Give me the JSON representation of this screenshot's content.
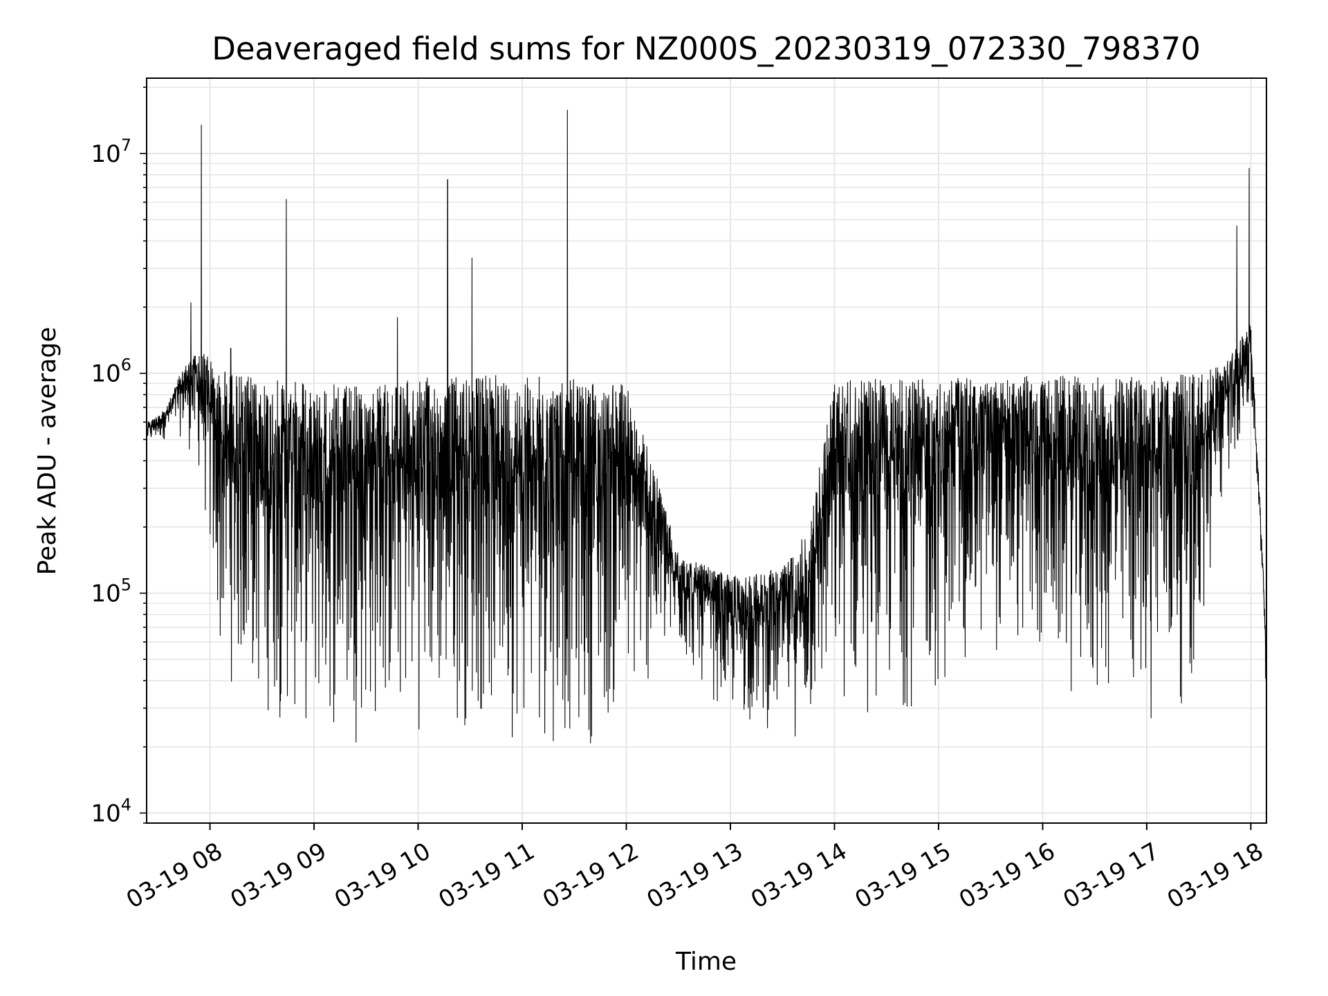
{
  "chart_data": {
    "type": "line",
    "title": "Deaveraged field sums for NZ000S_20230319_072330_798370",
    "xlabel": "Time",
    "ylabel": "Peak ADU - average",
    "yscale": "log",
    "ylim": [
      9000,
      22000000
    ],
    "xlim": [
      "2023-03-19 07:23:30",
      "2023-03-19 18:09:00"
    ],
    "grid": true,
    "line_color": "#000000",
    "grid_color": "#e6e6e6",
    "x_ticks": [
      {
        "value": "2023-03-19 08:00",
        "label": "03-19 08"
      },
      {
        "value": "2023-03-19 09:00",
        "label": "03-19 09"
      },
      {
        "value": "2023-03-19 10:00",
        "label": "03-19 10"
      },
      {
        "value": "2023-03-19 11:00",
        "label": "03-19 11"
      },
      {
        "value": "2023-03-19 12:00",
        "label": "03-19 12"
      },
      {
        "value": "2023-03-19 13:00",
        "label": "03-19 13"
      },
      {
        "value": "2023-03-19 14:00",
        "label": "03-19 14"
      },
      {
        "value": "2023-03-19 15:00",
        "label": "03-19 15"
      },
      {
        "value": "2023-03-19 16:00",
        "label": "03-19 16"
      },
      {
        "value": "2023-03-19 17:00",
        "label": "03-19 17"
      },
      {
        "value": "2023-03-19 18:00",
        "label": "03-19 18"
      }
    ],
    "y_ticks": [
      {
        "value": 10000,
        "base": "10",
        "exp": "4"
      },
      {
        "value": 100000,
        "base": "10",
        "exp": "5"
      },
      {
        "value": 1000000,
        "base": "10",
        "exp": "6"
      },
      {
        "value": 10000000,
        "base": "10",
        "exp": "7"
      }
    ],
    "envelope": {
      "description_of_values": "approximate upper and lower envelope of the densely sampled series",
      "x": [
        "2023-03-19 07:24",
        "2023-03-19 07:35",
        "2023-03-19 07:45",
        "2023-03-19 07:55",
        "2023-03-19 08:05",
        "2023-03-19 08:30",
        "2023-03-19 09:00",
        "2023-03-19 09:30",
        "2023-03-19 10:00",
        "2023-03-19 10:30",
        "2023-03-19 11:00",
        "2023-03-19 11:30",
        "2023-03-19 12:00",
        "2023-03-19 12:15",
        "2023-03-19 12:30",
        "2023-03-19 13:00",
        "2023-03-19 13:30",
        "2023-03-19 13:45",
        "2023-03-19 14:00",
        "2023-03-19 14:30",
        "2023-03-19 15:00",
        "2023-03-19 15:30",
        "2023-03-19 16:00",
        "2023-03-19 16:30",
        "2023-03-19 17:00",
        "2023-03-19 17:30",
        "2023-03-19 17:45",
        "2023-03-19 18:00",
        "2023-03-19 18:05",
        "2023-03-19 18:09"
      ],
      "upper": [
        600000,
        700000,
        1100000,
        1300000,
        1050000,
        950000,
        900000,
        880000,
        950000,
        1000000,
        980000,
        950000,
        900000,
        400000,
        150000,
        120000,
        130000,
        200000,
        950000,
        950000,
        950000,
        960000,
        980000,
        970000,
        980000,
        1000000,
        1100000,
        1700000,
        300000,
        60000
      ],
      "lower": [
        450000,
        500000,
        500000,
        300000,
        40000,
        25000,
        20000,
        20000,
        22000,
        22000,
        20000,
        18000,
        22000,
        35000,
        50000,
        25000,
        22000,
        20000,
        25000,
        25000,
        30000,
        50000,
        40000,
        25000,
        25000,
        30000,
        300000,
        600000,
        200000,
        25000
      ]
    },
    "spikes": [
      {
        "x": "2023-03-19 07:55",
        "y": 13500000
      },
      {
        "x": "2023-03-19 08:44",
        "y": 6200000
      },
      {
        "x": "2023-03-19 09:48",
        "y": 1800000
      },
      {
        "x": "2023-03-19 10:17",
        "y": 7600000
      },
      {
        "x": "2023-03-19 10:31",
        "y": 3350000
      },
      {
        "x": "2023-03-19 11:26",
        "y": 15800000
      },
      {
        "x": "2023-03-19 17:52",
        "y": 4700000
      },
      {
        "x": "2023-03-19 17:59",
        "y": 8600000
      },
      {
        "x": "2023-03-19 08:12",
        "y": 1300000
      },
      {
        "x": "2023-03-19 07:49",
        "y": 2100000
      }
    ]
  }
}
